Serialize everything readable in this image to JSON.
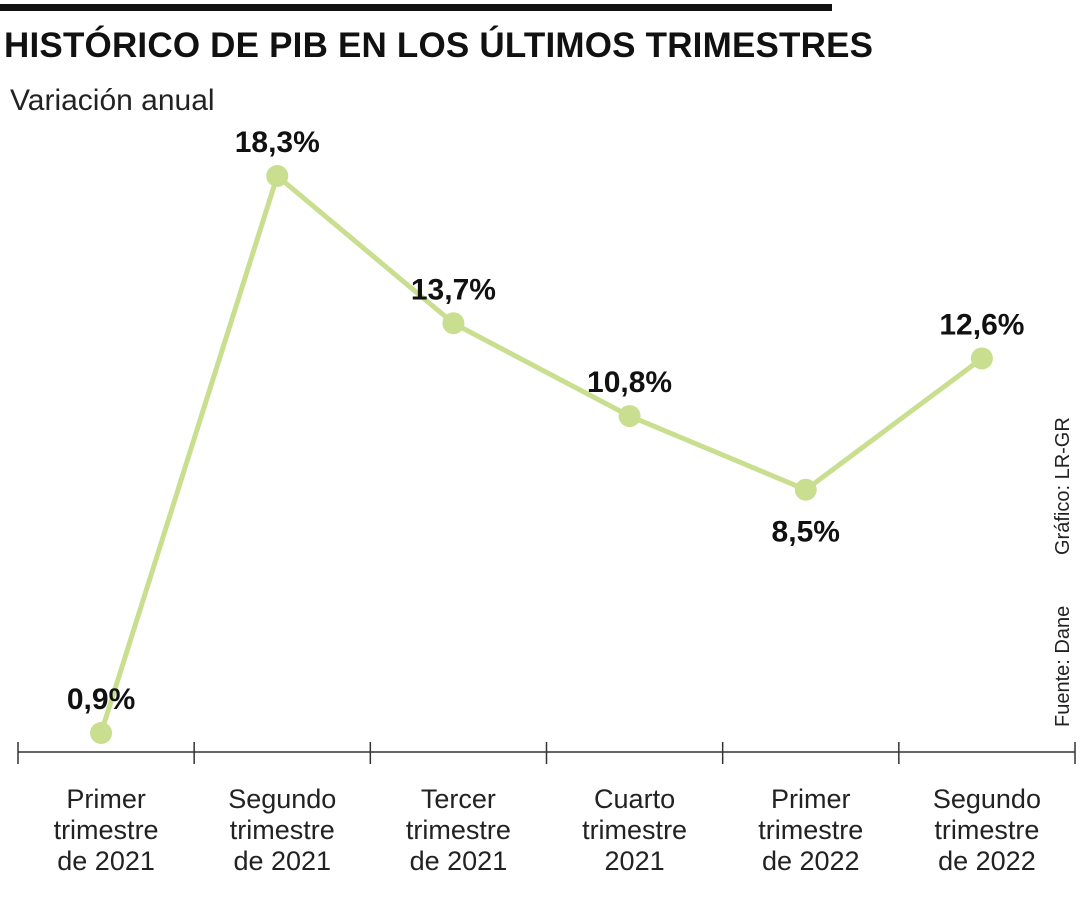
{
  "title": "HISTÓRICO DE PIB EN LOS ÚLTIMOS TRIMESTRES",
  "subtitle": "Variación anual",
  "credits": {
    "grafico": "Gráfico: LR-GR",
    "fuente": "Fuente: Dane"
  },
  "colors": {
    "line": "#c9de8f",
    "marker": "#c9de8f",
    "axis": "#333333"
  },
  "chart_data": {
    "type": "line",
    "title": "HISTÓRICO DE PIB EN LOS ÚLTIMOS TRIMESTRES",
    "ylabel": "Variación anual",
    "xlabel": "",
    "categories": [
      [
        "Primer",
        "trimestre",
        "de 2021"
      ],
      [
        "Segundo",
        "trimestre",
        "de 2021"
      ],
      [
        "Tercer",
        "trimestre",
        "de 2021"
      ],
      [
        "Cuarto",
        "trimestre",
        "2021"
      ],
      [
        "Primer",
        "trimestre",
        "de 2022"
      ],
      [
        "Segundo",
        "trimestre",
        "de 2022"
      ]
    ],
    "series": [
      {
        "values": [
          0.9,
          18.3,
          13.7,
          10.8,
          8.5,
          12.6
        ]
      }
    ],
    "data_labels": [
      "0,9%",
      "18,3%",
      "13,7%",
      "10,8%",
      "8,5%",
      "12,6%"
    ],
    "label_position": [
      "above",
      "above",
      "above",
      "above",
      "below",
      "above"
    ],
    "grid": false,
    "legend": "none"
  }
}
